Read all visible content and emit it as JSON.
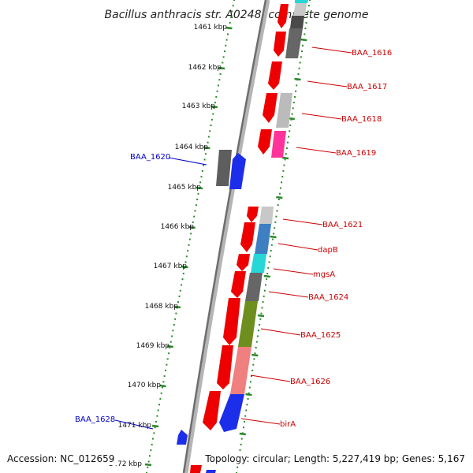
{
  "title": "Bacillus anthracis str. A0248, complete genome",
  "footer": {
    "accession": "Accession: NC_012659",
    "topology": "Topology: circular; Length: 5,227,419 bp; Genes: 5,167"
  },
  "colors": {
    "backbone": "#7a7a7a",
    "tick": "#2a8a2a",
    "label_right": "#cc0000",
    "label_left": "#0000cc"
  },
  "kbp_ticks": [
    "1461 kbp",
    "1462 kbp",
    "1463 kbp",
    "1464 kbp",
    "1465 kbp",
    "1466 kbp",
    "1467 kbp",
    "1468 kbp",
    "1469 kbp",
    "1470 kbp",
    "1471 kbp",
    "1472 kbp"
  ],
  "gene_labels_right": [
    "BAA_1616",
    "BAA_1617",
    "BAA_1618",
    "BAA_1619",
    "BAA_1621",
    "dapB",
    "mgsA",
    "BAA_1624",
    "BAA_1625",
    "BAA_1626",
    "birA"
  ],
  "gene_labels_left": [
    "BAA_1620",
    "BAA_1628"
  ]
}
